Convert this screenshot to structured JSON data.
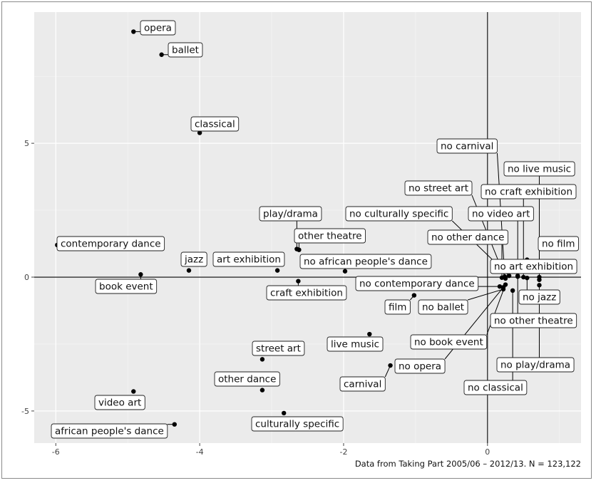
{
  "chart_data": {
    "type": "scatter",
    "title": "",
    "xlabel": "",
    "ylabel": "",
    "xlim": [
      -6.3,
      1.3
    ],
    "ylim": [
      -6.2,
      9.9
    ],
    "xticks": [
      -6,
      -4,
      -2,
      0
    ],
    "yticks": [
      -5,
      0,
      5
    ],
    "grid": true,
    "background": "#ebebeb",
    "reference_lines": {
      "x": 0,
      "y": 0
    },
    "caption": "Data from Taking Part 2005/06 – 2012/13. N = 123,122",
    "points": [
      {
        "label": "opera",
        "x": -4.92,
        "y": 9.17
      },
      {
        "label": "ballet",
        "x": -4.53,
        "y": 8.31
      },
      {
        "label": "classical",
        "x": -4.0,
        "y": 5.39
      },
      {
        "label": "contemporary dance",
        "x": -5.98,
        "y": 1.2
      },
      {
        "label": "jazz",
        "x": -4.15,
        "y": 0.25
      },
      {
        "label": "book event",
        "x": -4.82,
        "y": 0.1
      },
      {
        "label": "play/drama",
        "x": -2.65,
        "y": 1.05
      },
      {
        "label": "other theatre",
        "x": -2.62,
        "y": 1.02
      },
      {
        "label": "art exhibition",
        "x": -2.92,
        "y": 0.25
      },
      {
        "label": "craft exhibition",
        "x": -2.63,
        "y": -0.15
      },
      {
        "label": "no african people's dance",
        "x": -1.98,
        "y": 0.22
      },
      {
        "label": "no contemporary dance",
        "x": 0.17,
        "y": -0.35
      },
      {
        "label": "film",
        "x": -1.02,
        "y": -0.68
      },
      {
        "label": "no ballet",
        "x": 0.22,
        "y": -0.45
      },
      {
        "label": "live music",
        "x": -1.64,
        "y": -2.13
      },
      {
        "label": "no book event",
        "x": 0.25,
        "y": -0.28
      },
      {
        "label": "carnival",
        "x": -1.35,
        "y": -3.3
      },
      {
        "label": "no opera",
        "x": 0.22,
        "y": -0.38
      },
      {
        "label": "street art",
        "x": -3.13,
        "y": -3.07
      },
      {
        "label": "other dance",
        "x": -3.13,
        "y": -4.22
      },
      {
        "label": "culturally specific",
        "x": -2.83,
        "y": -5.08
      },
      {
        "label": "video art",
        "x": -4.92,
        "y": -4.27
      },
      {
        "label": "african people's dance",
        "x": -4.35,
        "y": -5.5
      },
      {
        "label": "no carnival",
        "x": 0.24,
        "y": 0.02
      },
      {
        "label": "no live music",
        "x": 0.72,
        "y": -0.1
      },
      {
        "label": "no street art",
        "x": 0.25,
        "y": -0.05
      },
      {
        "label": "no craft exhibition",
        "x": 0.5,
        "y": 0.0
      },
      {
        "label": "no culturally specific",
        "x": 0.3,
        "y": 0.05
      },
      {
        "label": "no video art",
        "x": 0.42,
        "y": 0.02
      },
      {
        "label": "no other dance",
        "x": 0.2,
        "y": -0.02
      },
      {
        "label": "no film",
        "x": 0.72,
        "y": 0.0
      },
      {
        "label": "no art exhibition",
        "x": 0.55,
        "y": 0.65
      },
      {
        "label": "no jazz",
        "x": 0.55,
        "y": -0.03
      },
      {
        "label": "no other theatre",
        "x": 0.42,
        "y": 0.05
      },
      {
        "label": "no play/drama",
        "x": 0.72,
        "y": -0.3
      },
      {
        "label": "no classical",
        "x": 0.35,
        "y": -0.5
      }
    ]
  }
}
